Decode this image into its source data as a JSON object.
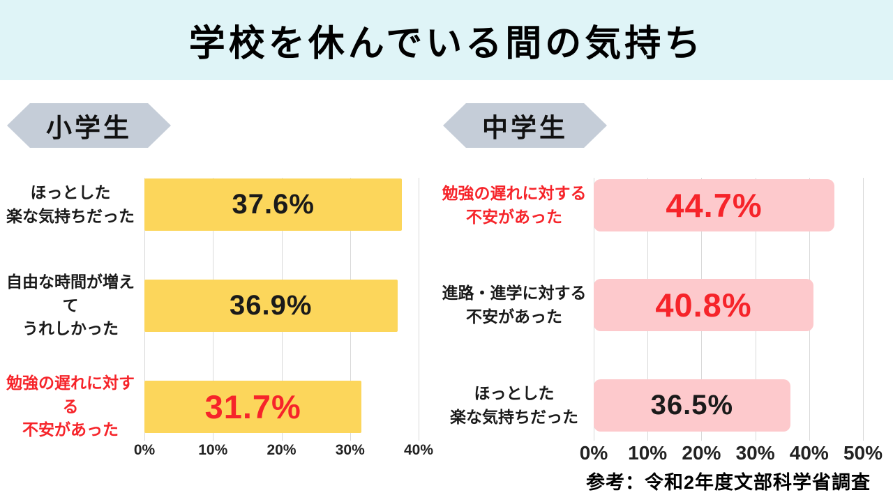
{
  "header": {
    "title": "学校を休んでいる間の気持ち",
    "background_color": "#DFF4F7"
  },
  "footer": {
    "source_note": "参考：令和2年度文部科学省調査"
  },
  "colors": {
    "yellow_bar": "#FCD65B",
    "pink_bar": "#FDC9CC",
    "accent_red": "#F6242A",
    "badge_gray": "#C5CDD8",
    "gridline_gray": "#D9D9D9"
  },
  "chart_data": [
    {
      "type": "bar",
      "orientation": "horizontal",
      "group_label": "小学生",
      "bar_color": "#FCD65B",
      "xlim": [
        0,
        40
      ],
      "x_ticks": [
        "0%",
        "10%",
        "20%",
        "30%",
        "40%"
      ],
      "grid": true,
      "legend": "none",
      "rows": [
        {
          "label_line1": "ほっとした",
          "label_line2": "楽な気持ちだった",
          "value": 37.6,
          "value_label": "37.6%",
          "label_red": false,
          "value_red": false
        },
        {
          "label_line1": "自由な時間が増えて",
          "label_line2": "うれしかった",
          "value": 36.9,
          "value_label": "36.9%",
          "label_red": false,
          "value_red": false
        },
        {
          "label_line1": "勉強の遅れに対する",
          "label_line2": "不安があった",
          "value": 31.7,
          "value_label": "31.7%",
          "label_red": true,
          "value_red": true
        }
      ]
    },
    {
      "type": "bar",
      "orientation": "horizontal",
      "group_label": "中学生",
      "bar_color": "#FDC9CC",
      "xlim": [
        0,
        50
      ],
      "x_ticks": [
        "0%",
        "10%",
        "20%",
        "30%",
        "40%",
        "50%"
      ],
      "grid": true,
      "legend": "none",
      "rows": [
        {
          "label_line1": "勉強の遅れに対する",
          "label_line2": "不安があった",
          "value": 44.7,
          "value_label": "44.7%",
          "label_red": true,
          "value_red": true
        },
        {
          "label_line1": "進路・進学に対する",
          "label_line2": "不安があった",
          "value": 40.8,
          "value_label": "40.8%",
          "label_red": false,
          "value_red": true
        },
        {
          "label_line1": "ほっとした",
          "label_line2": "楽な気持ちだった",
          "value": 36.5,
          "value_label": "36.5%",
          "label_red": false,
          "value_red": false
        }
      ]
    }
  ]
}
